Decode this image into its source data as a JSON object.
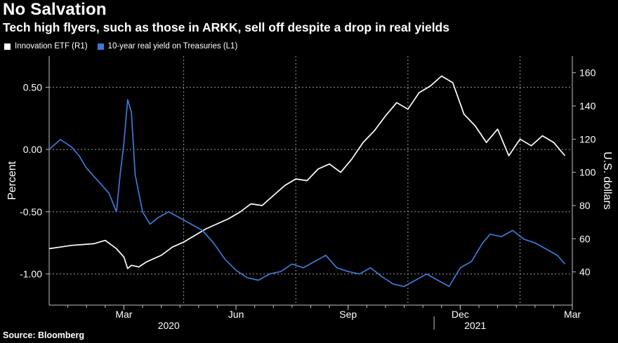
{
  "chart_data": {
    "type": "line",
    "title": "No Salvation",
    "subtitle": "Tech high flyers, such as those in ARKK, sell off despite a drop in real yields",
    "source": "Source: Bloomberg",
    "left_axis": {
      "label": "Percent",
      "ylim": [
        -1.25,
        0.75
      ],
      "ticks": [
        "0.50",
        "0.00",
        "-0.50",
        "-1.00"
      ],
      "tick_values": [
        0.5,
        0.0,
        -0.5,
        -1.0
      ]
    },
    "right_axis": {
      "label": "U.S. dollars",
      "ylim": [
        20,
        170
      ],
      "ticks": [
        "160",
        "140",
        "120",
        "100",
        "80",
        "60",
        "40"
      ],
      "tick_values": [
        160,
        140,
        120,
        100,
        80,
        60,
        40
      ]
    },
    "x_axis": {
      "range": [
        0,
        14
      ],
      "month_ticks": [
        {
          "label": "Mar",
          "x": 2
        },
        {
          "label": "Jun",
          "x": 5
        },
        {
          "label": "Sep",
          "x": 8
        },
        {
          "label": "Dec",
          "x": 11
        },
        {
          "label": "Mar",
          "x": 14
        }
      ],
      "gridlines": [
        3.6,
        6.6,
        9.6,
        12.6
      ],
      "year_labels": [
        {
          "label": "2020",
          "x": 3.2
        },
        {
          "label": "2021",
          "x": 11.4
        }
      ],
      "year_divider": 10.3
    },
    "series": [
      {
        "name": "Innovation ETF (R1)",
        "axis": "right",
        "color": "#ffffff",
        "x": [
          0,
          0.3,
          0.6,
          0.9,
          1.2,
          1.5,
          1.8,
          2.0,
          2.1,
          2.2,
          2.4,
          2.6,
          2.8,
          3.0,
          3.3,
          3.6,
          3.9,
          4.2,
          4.5,
          4.8,
          5.1,
          5.4,
          5.7,
          6.0,
          6.3,
          6.6,
          6.9,
          7.2,
          7.5,
          7.8,
          8.1,
          8.4,
          8.7,
          9.0,
          9.3,
          9.6,
          9.9,
          10.2,
          10.5,
          10.8,
          11.1,
          11.4,
          11.7,
          12.0,
          12.3,
          12.6,
          12.9,
          13.2,
          13.5,
          13.8
        ],
        "values": [
          54,
          55,
          56,
          56.5,
          57,
          59,
          54,
          49,
          42,
          44,
          43,
          46,
          48,
          50,
          55,
          58,
          62,
          66,
          69,
          72,
          76,
          81,
          80,
          86,
          92,
          96,
          95,
          102,
          105,
          100,
          108,
          118,
          125,
          134,
          142,
          138,
          148,
          152,
          158,
          154,
          135,
          128,
          118,
          126,
          110,
          120,
          116,
          122,
          118,
          110
        ]
      },
      {
        "name": "10-year real yield on Treasuries (L1)",
        "axis": "left",
        "color": "#3b7bd9",
        "x": [
          0,
          0.3,
          0.6,
          0.8,
          1.0,
          1.3,
          1.6,
          1.8,
          1.9,
          2.0,
          2.1,
          2.2,
          2.3,
          2.5,
          2.7,
          2.9,
          3.2,
          3.5,
          3.8,
          4.1,
          4.4,
          4.7,
          5.0,
          5.3,
          5.6,
          5.9,
          6.2,
          6.5,
          6.8,
          7.1,
          7.4,
          7.7,
          8.0,
          8.3,
          8.6,
          8.9,
          9.2,
          9.5,
          9.8,
          10.1,
          10.4,
          10.7,
          11.0,
          11.3,
          11.6,
          11.8,
          12.1,
          12.4,
          12.7,
          13.0,
          13.3,
          13.6,
          13.8
        ],
        "values": [
          0.0,
          0.08,
          0.02,
          -0.05,
          -0.15,
          -0.25,
          -0.35,
          -0.5,
          -0.2,
          0.05,
          0.4,
          0.3,
          -0.2,
          -0.5,
          -0.6,
          -0.55,
          -0.5,
          -0.55,
          -0.6,
          -0.65,
          -0.75,
          -0.88,
          -0.97,
          -1.03,
          -1.05,
          -1.0,
          -0.98,
          -0.92,
          -0.95,
          -0.9,
          -0.85,
          -0.95,
          -0.98,
          -1.0,
          -0.95,
          -1.02,
          -1.08,
          -1.1,
          -1.05,
          -1.0,
          -1.05,
          -1.1,
          -0.95,
          -0.9,
          -0.75,
          -0.68,
          -0.7,
          -0.65,
          -0.72,
          -0.75,
          -0.8,
          -0.85,
          -0.92
        ]
      }
    ]
  }
}
